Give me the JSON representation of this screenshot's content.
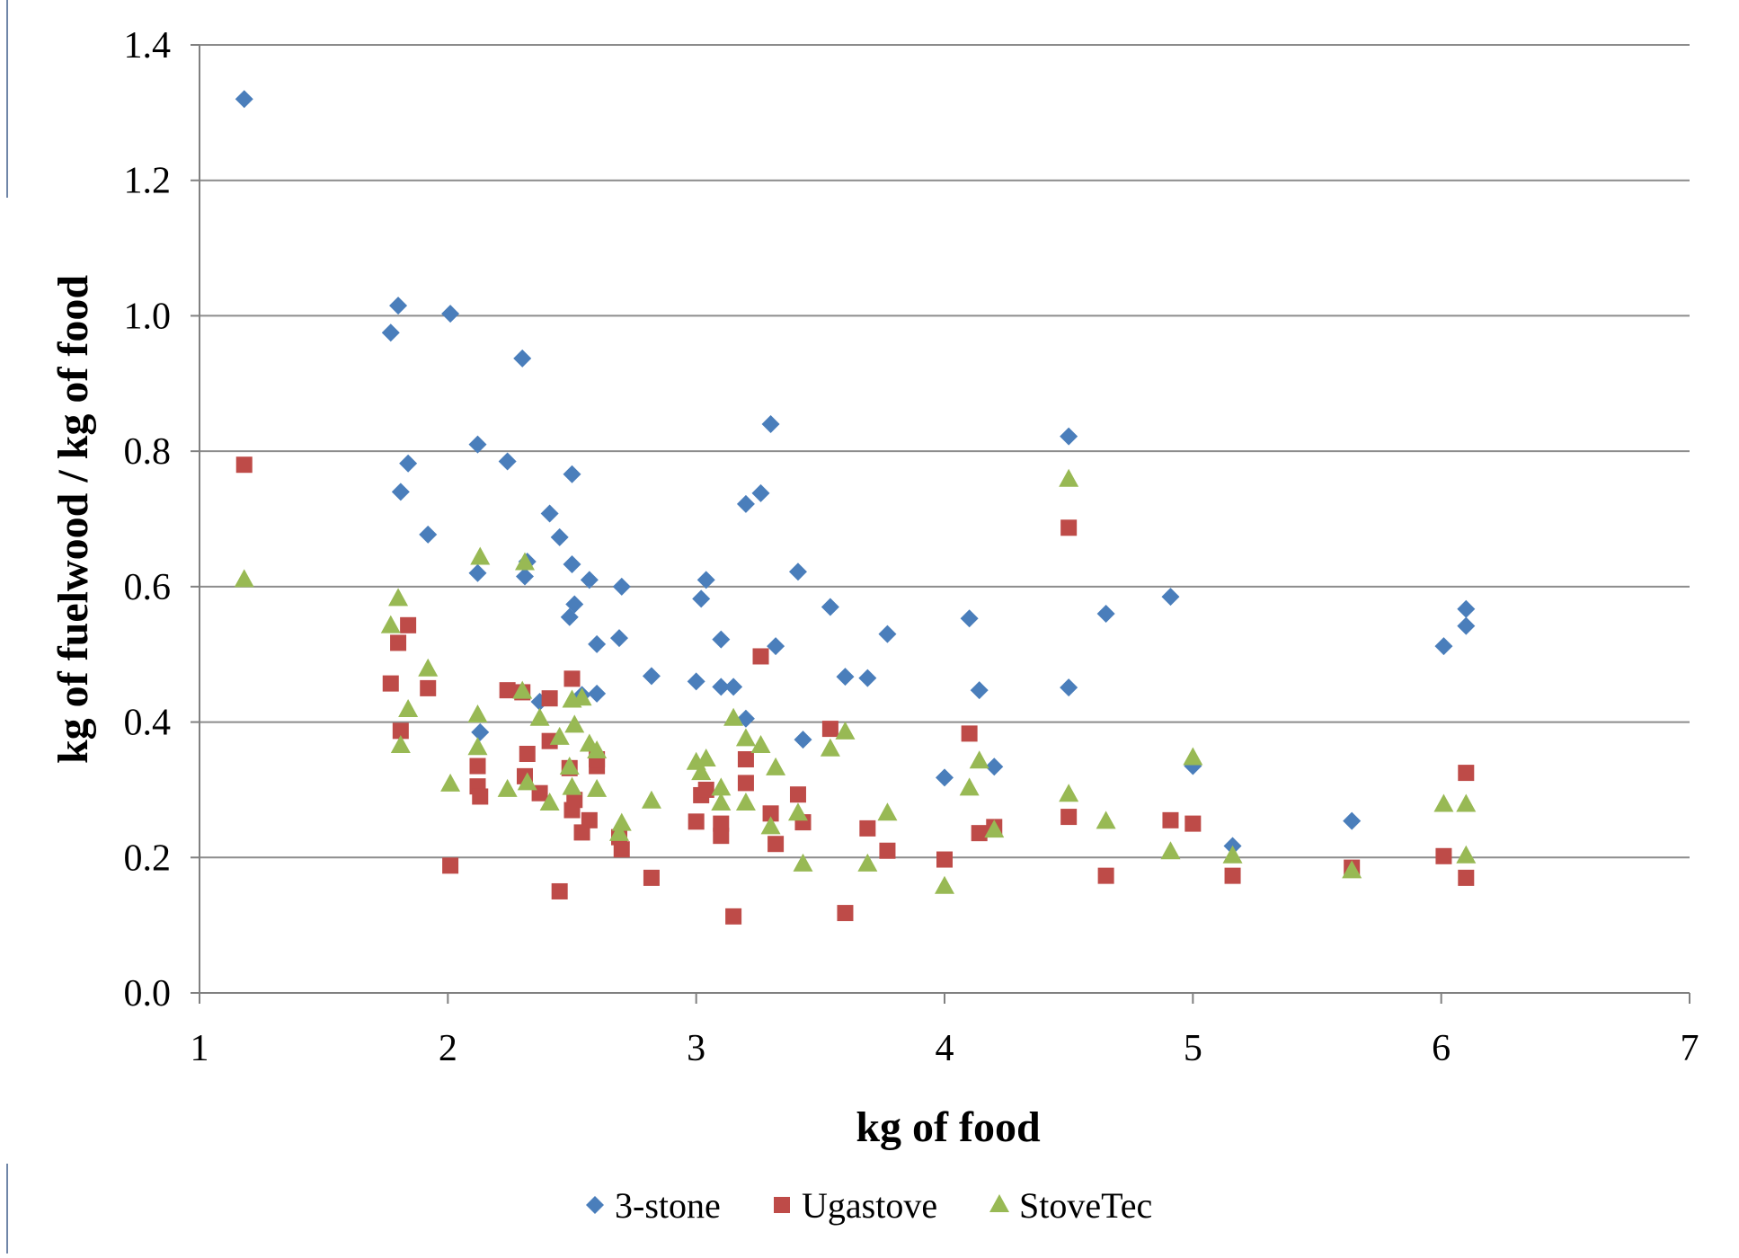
{
  "chart_data": {
    "type": "scatter",
    "title": "",
    "xlabel": "kg of food",
    "ylabel": "kg of fuelwood / kg of food",
    "xlim": [
      1,
      7
    ],
    "ylim": [
      0,
      1.4
    ],
    "x_ticks": [
      "1",
      "2",
      "3",
      "4",
      "5",
      "6",
      "7"
    ],
    "y_ticks": [
      "0.0",
      "0.2",
      "0.4",
      "0.6",
      "0.8",
      "1.0",
      "1.2",
      "1.4"
    ],
    "grid": "horizontal",
    "legend_position": "bottom",
    "series": [
      {
        "name": "3-stone",
        "marker": "diamond",
        "color": "#4a7ebb",
        "points": [
          [
            1.18,
            1.32
          ],
          [
            1.77,
            0.975
          ],
          [
            1.8,
            1.015
          ],
          [
            1.81,
            0.74
          ],
          [
            1.84,
            0.782
          ],
          [
            1.92,
            0.677
          ],
          [
            2.01,
            1.003
          ],
          [
            2.12,
            0.81
          ],
          [
            2.12,
            0.62
          ],
          [
            2.13,
            0.385
          ],
          [
            2.24,
            0.785
          ],
          [
            2.3,
            0.937
          ],
          [
            2.31,
            0.615
          ],
          [
            2.32,
            0.637
          ],
          [
            2.37,
            0.43
          ],
          [
            2.41,
            0.708
          ],
          [
            2.45,
            0.673
          ],
          [
            2.49,
            0.555
          ],
          [
            2.5,
            0.766
          ],
          [
            2.5,
            0.633
          ],
          [
            2.51,
            0.574
          ],
          [
            2.54,
            0.44
          ],
          [
            2.57,
            0.61
          ],
          [
            2.6,
            0.515
          ],
          [
            2.6,
            0.442
          ],
          [
            2.69,
            0.524
          ],
          [
            2.7,
            0.6
          ],
          [
            2.82,
            0.468
          ],
          [
            3.0,
            0.46
          ],
          [
            3.02,
            0.582
          ],
          [
            3.04,
            0.61
          ],
          [
            3.1,
            0.522
          ],
          [
            3.1,
            0.452
          ],
          [
            3.15,
            0.452
          ],
          [
            3.2,
            0.722
          ],
          [
            3.2,
            0.405
          ],
          [
            3.26,
            0.738
          ],
          [
            3.3,
            0.84
          ],
          [
            3.32,
            0.512
          ],
          [
            3.41,
            0.622
          ],
          [
            3.43,
            0.374
          ],
          [
            3.54,
            0.57
          ],
          [
            3.6,
            0.467
          ],
          [
            3.69,
            0.465
          ],
          [
            3.77,
            0.53
          ],
          [
            4.0,
            0.318
          ],
          [
            4.1,
            0.553
          ],
          [
            4.14,
            0.447
          ],
          [
            4.2,
            0.334
          ],
          [
            4.5,
            0.822
          ],
          [
            4.5,
            0.451
          ],
          [
            4.65,
            0.56
          ],
          [
            4.91,
            0.585
          ],
          [
            5.0,
            0.335
          ],
          [
            5.16,
            0.217
          ],
          [
            5.64,
            0.254
          ],
          [
            6.01,
            0.512
          ],
          [
            6.1,
            0.567
          ],
          [
            6.1,
            0.542
          ]
        ]
      },
      {
        "name": "Ugastove",
        "marker": "square",
        "color": "#be4b48",
        "points": [
          [
            1.18,
            0.78
          ],
          [
            1.77,
            0.457
          ],
          [
            1.8,
            0.517
          ],
          [
            1.81,
            0.387
          ],
          [
            1.84,
            0.543
          ],
          [
            1.92,
            0.45
          ],
          [
            2.01,
            0.188
          ],
          [
            2.12,
            0.335
          ],
          [
            2.12,
            0.305
          ],
          [
            2.13,
            0.29
          ],
          [
            2.24,
            0.447
          ],
          [
            2.3,
            0.444
          ],
          [
            2.31,
            0.32
          ],
          [
            2.32,
            0.353
          ],
          [
            2.37,
            0.295
          ],
          [
            2.41,
            0.372
          ],
          [
            2.41,
            0.435
          ],
          [
            2.45,
            0.15
          ],
          [
            2.49,
            0.332
          ],
          [
            2.5,
            0.464
          ],
          [
            2.5,
            0.27
          ],
          [
            2.51,
            0.285
          ],
          [
            2.54,
            0.237
          ],
          [
            2.57,
            0.255
          ],
          [
            2.6,
            0.335
          ],
          [
            2.6,
            0.345
          ],
          [
            2.69,
            0.23
          ],
          [
            2.7,
            0.212
          ],
          [
            2.82,
            0.17
          ],
          [
            3.0,
            0.253
          ],
          [
            3.02,
            0.292
          ],
          [
            3.04,
            0.3
          ],
          [
            3.1,
            0.25
          ],
          [
            3.1,
            0.232
          ],
          [
            3.15,
            0.113
          ],
          [
            3.2,
            0.345
          ],
          [
            3.2,
            0.31
          ],
          [
            3.26,
            0.497
          ],
          [
            3.3,
            0.265
          ],
          [
            3.32,
            0.22
          ],
          [
            3.41,
            0.293
          ],
          [
            3.43,
            0.252
          ],
          [
            3.54,
            0.39
          ],
          [
            3.6,
            0.118
          ],
          [
            3.69,
            0.243
          ],
          [
            3.77,
            0.21
          ],
          [
            4.0,
            0.197
          ],
          [
            4.1,
            0.383
          ],
          [
            4.14,
            0.236
          ],
          [
            4.2,
            0.245
          ],
          [
            4.5,
            0.687
          ],
          [
            4.5,
            0.26
          ],
          [
            4.65,
            0.173
          ],
          [
            4.91,
            0.255
          ],
          [
            5.0,
            0.25
          ],
          [
            5.16,
            0.173
          ],
          [
            5.64,
            0.185
          ],
          [
            6.01,
            0.202
          ],
          [
            6.1,
            0.325
          ],
          [
            6.1,
            0.17
          ]
        ]
      },
      {
        "name": "StoveTec",
        "marker": "triangle",
        "color": "#98b954",
        "points": [
          [
            1.18,
            0.61
          ],
          [
            1.77,
            0.542
          ],
          [
            1.8,
            0.582
          ],
          [
            1.81,
            0.365
          ],
          [
            1.84,
            0.418
          ],
          [
            1.92,
            0.478
          ],
          [
            2.01,
            0.308
          ],
          [
            2.12,
            0.41
          ],
          [
            2.12,
            0.362
          ],
          [
            2.13,
            0.643
          ],
          [
            2.24,
            0.3
          ],
          [
            2.3,
            0.445
          ],
          [
            2.31,
            0.635
          ],
          [
            2.32,
            0.31
          ],
          [
            2.37,
            0.405
          ],
          [
            2.41,
            0.28
          ],
          [
            2.45,
            0.377
          ],
          [
            2.49,
            0.333
          ],
          [
            2.5,
            0.432
          ],
          [
            2.5,
            0.303
          ],
          [
            2.51,
            0.395
          ],
          [
            2.54,
            0.435
          ],
          [
            2.57,
            0.367
          ],
          [
            2.6,
            0.357
          ],
          [
            2.6,
            0.3
          ],
          [
            2.69,
            0.235
          ],
          [
            2.7,
            0.25
          ],
          [
            2.82,
            0.283
          ],
          [
            3.0,
            0.34
          ],
          [
            3.02,
            0.325
          ],
          [
            3.04,
            0.345
          ],
          [
            3.1,
            0.302
          ],
          [
            3.1,
            0.28
          ],
          [
            3.15,
            0.405
          ],
          [
            3.2,
            0.375
          ],
          [
            3.2,
            0.28
          ],
          [
            3.26,
            0.365
          ],
          [
            3.3,
            0.245
          ],
          [
            3.32,
            0.332
          ],
          [
            3.41,
            0.265
          ],
          [
            3.43,
            0.19
          ],
          [
            3.54,
            0.36
          ],
          [
            3.6,
            0.385
          ],
          [
            3.69,
            0.19
          ],
          [
            3.77,
            0.265
          ],
          [
            4.0,
            0.157
          ],
          [
            4.1,
            0.302
          ],
          [
            4.14,
            0.342
          ],
          [
            4.2,
            0.24
          ],
          [
            4.5,
            0.758
          ],
          [
            4.5,
            0.293
          ],
          [
            4.65,
            0.253
          ],
          [
            4.91,
            0.208
          ],
          [
            5.0,
            0.347
          ],
          [
            5.16,
            0.202
          ],
          [
            5.64,
            0.18
          ],
          [
            6.01,
            0.278
          ],
          [
            6.1,
            0.278
          ],
          [
            6.1,
            0.202
          ]
        ]
      }
    ]
  }
}
